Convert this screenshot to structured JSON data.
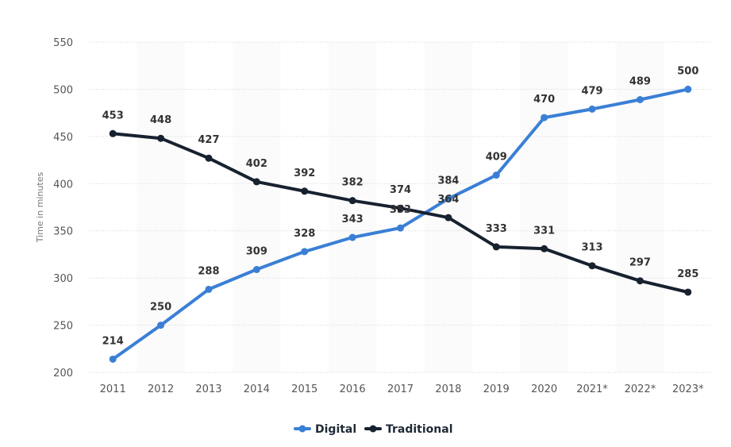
{
  "chart_data": {
    "type": "line",
    "ylabel": "Time in minutes",
    "ylim": [
      200,
      550
    ],
    "yticks": [
      "200",
      "250",
      "300",
      "350",
      "400",
      "450",
      "500",
      "550"
    ],
    "grid": true,
    "legend_position": "bottom-center",
    "categories": [
      "2011",
      "2012",
      "2013",
      "2014",
      "2015",
      "2016",
      "2017",
      "2018",
      "2019",
      "2020",
      "2021*",
      "2022*",
      "2023*"
    ],
    "series": [
      {
        "name": "Digital",
        "color": "#3a7fd5",
        "values": [
          214,
          250,
          288,
          309,
          328,
          343,
          353,
          384,
          409,
          470,
          479,
          489,
          500
        ]
      },
      {
        "name": "Traditional",
        "color": "#17212f",
        "values": [
          453,
          448,
          427,
          402,
          392,
          382,
          374,
          364,
          333,
          331,
          313,
          297,
          285
        ]
      }
    ]
  }
}
